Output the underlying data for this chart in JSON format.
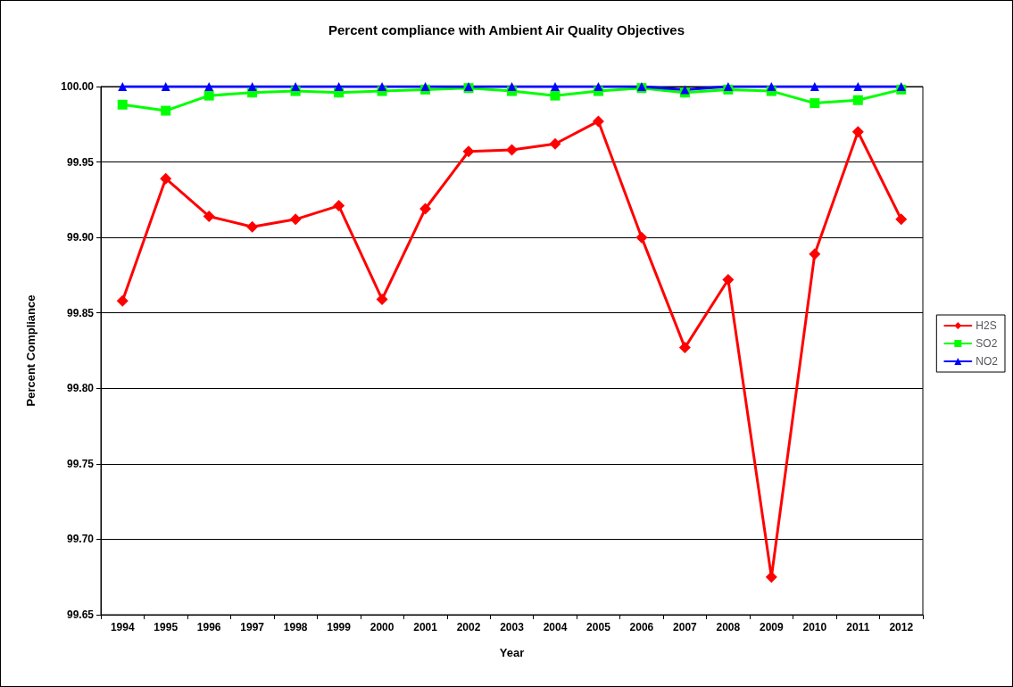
{
  "chart_data": {
    "type": "line",
    "title": "Percent compliance with Ambient Air Quality Objectives",
    "xlabel": "Year",
    "ylabel": "Percent Compliance",
    "categories": [
      "1994",
      "1995",
      "1996",
      "1997",
      "1998",
      "1999",
      "2000",
      "2001",
      "2002",
      "2003",
      "2004",
      "2005",
      "2006",
      "2007",
      "2008",
      "2009",
      "2010",
      "2011",
      "2012"
    ],
    "series": [
      {
        "name": "H2S",
        "color": "#ff0000",
        "marker": "diamond",
        "values": [
          99.858,
          99.939,
          99.914,
          99.907,
          99.912,
          99.921,
          99.859,
          99.919,
          99.957,
          99.958,
          99.962,
          99.977,
          99.9,
          99.827,
          99.872,
          99.675,
          99.889,
          99.97,
          99.912
        ]
      },
      {
        "name": "SO2",
        "color": "#00ff00",
        "marker": "square",
        "values": [
          99.988,
          99.984,
          99.994,
          99.996,
          99.997,
          99.996,
          99.997,
          99.998,
          99.999,
          99.997,
          99.994,
          99.997,
          99.999,
          99.996,
          99.998,
          99.997,
          99.989,
          99.991,
          99.998
        ]
      },
      {
        "name": "NO2",
        "color": "#0000ff",
        "marker": "triangle",
        "values": [
          100,
          100,
          100,
          100,
          100,
          100,
          100,
          100,
          100,
          100,
          100,
          100,
          100,
          99.998,
          100,
          100,
          100,
          100,
          100
        ]
      }
    ],
    "ylim": [
      99.65,
      100
    ],
    "yticks": [
      {
        "value": 99.65,
        "label": "99.65"
      },
      {
        "value": 99.7,
        "label": "99.70"
      },
      {
        "value": 99.75,
        "label": "99.75"
      },
      {
        "value": 99.8,
        "label": "99.80"
      },
      {
        "value": 99.85,
        "label": "99.85"
      },
      {
        "value": 99.9,
        "label": "99.90"
      },
      {
        "value": 99.95,
        "label": "99.95"
      },
      {
        "value": 100,
        "label": "100.00"
      }
    ],
    "grid": "y",
    "legend": "right",
    "line_style": "solid"
  }
}
